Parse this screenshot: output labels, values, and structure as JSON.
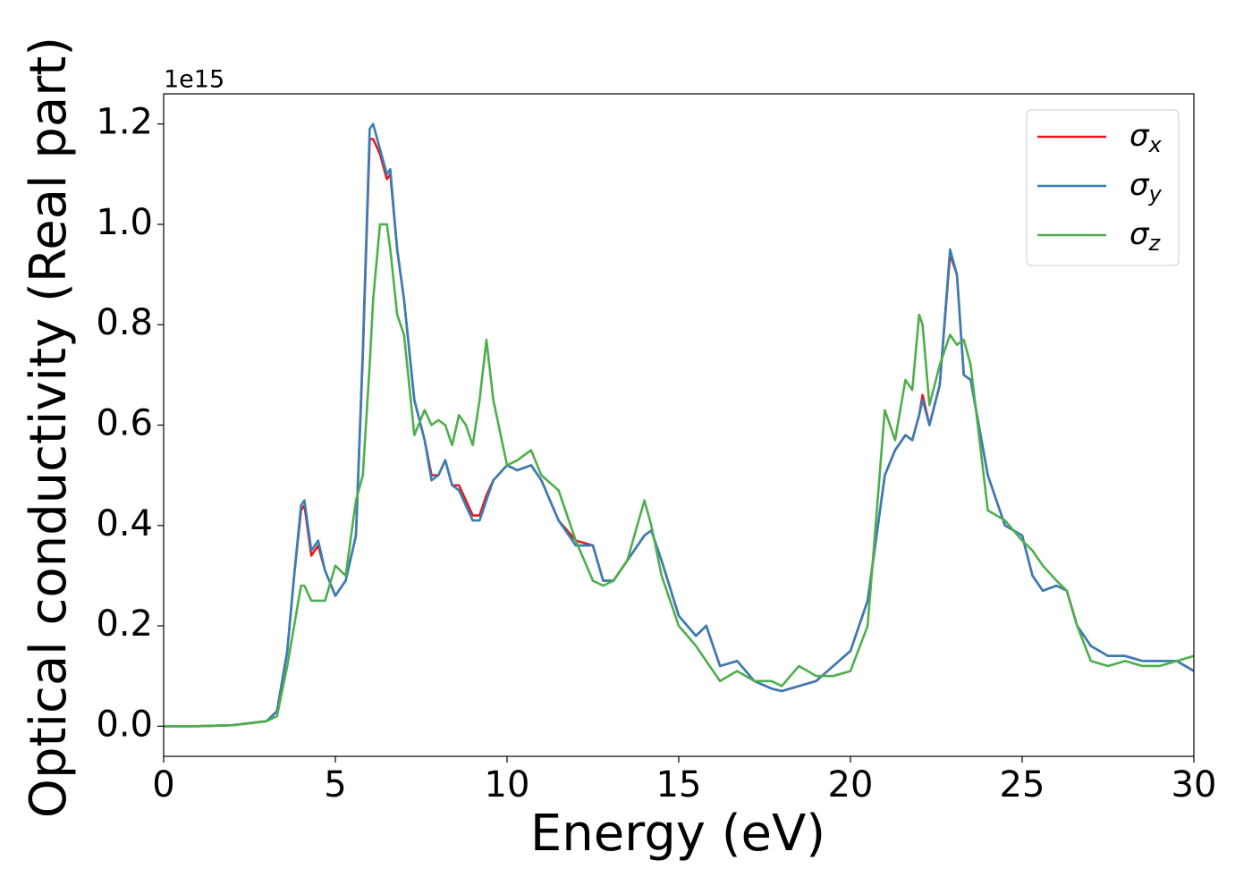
{
  "chart_data": {
    "type": "line",
    "xlabel": "Energy (eV)",
    "ylabel": "Optical conductivity (Real part)",
    "offset_label": "1e15",
    "x": [
      0,
      1,
      2,
      3,
      3.3,
      3.6,
      3.8,
      4.0,
      4.1,
      4.3,
      4.5,
      4.7,
      5.0,
      5.3,
      5.6,
      5.8,
      6.0,
      6.1,
      6.3,
      6.5,
      6.6,
      6.8,
      7.0,
      7.3,
      7.6,
      7.8,
      8.0,
      8.2,
      8.4,
      8.6,
      8.8,
      9.0,
      9.2,
      9.4,
      9.6,
      10.0,
      10.3,
      10.7,
      11.0,
      11.5,
      12.0,
      12.5,
      12.8,
      13.1,
      13.5,
      14.0,
      14.2,
      14.5,
      15.0,
      15.5,
      15.8,
      16.2,
      16.7,
      17.2,
      17.7,
      18.0,
      18.5,
      19.0,
      19.5,
      20.0,
      20.5,
      21.0,
      21.3,
      21.6,
      21.8,
      22.0,
      22.1,
      22.3,
      22.6,
      22.9,
      23.1,
      23.3,
      23.5,
      24.0,
      24.5,
      25.0,
      25.3,
      25.6,
      26.0,
      26.3,
      26.6,
      27.0,
      27.5,
      28.0,
      28.5,
      29.0,
      29.5,
      30.0
    ],
    "series": [
      {
        "name": "σx",
        "color": "#e41a1c",
        "values": [
          0,
          0,
          0.002,
          0.01,
          0.03,
          0.15,
          0.3,
          0.43,
          0.44,
          0.34,
          0.36,
          0.31,
          0.26,
          0.29,
          0.38,
          0.74,
          1.17,
          1.17,
          1.14,
          1.09,
          1.1,
          0.95,
          0.85,
          0.65,
          0.57,
          0.5,
          0.5,
          0.53,
          0.48,
          0.48,
          0.45,
          0.42,
          0.42,
          0.46,
          0.49,
          0.52,
          0.51,
          0.52,
          0.49,
          0.41,
          0.37,
          0.36,
          0.29,
          0.29,
          0.33,
          0.38,
          0.39,
          0.33,
          0.22,
          0.18,
          0.2,
          0.12,
          0.13,
          0.09,
          0.075,
          0.07,
          0.08,
          0.09,
          0.12,
          0.15,
          0.25,
          0.5,
          0.55,
          0.58,
          0.57,
          0.62,
          0.66,
          0.6,
          0.68,
          0.94,
          0.9,
          0.7,
          0.69,
          0.5,
          0.4,
          0.38,
          0.3,
          0.27,
          0.28,
          0.27,
          0.2,
          0.16,
          0.14,
          0.14,
          0.13,
          0.13,
          0.13,
          0.11
        ]
      },
      {
        "name": "σy",
        "color": "#377eb8",
        "values": [
          0,
          0,
          0.002,
          0.01,
          0.03,
          0.15,
          0.3,
          0.44,
          0.45,
          0.35,
          0.37,
          0.31,
          0.26,
          0.29,
          0.38,
          0.75,
          1.19,
          1.2,
          1.15,
          1.1,
          1.11,
          0.95,
          0.85,
          0.65,
          0.57,
          0.49,
          0.5,
          0.53,
          0.48,
          0.47,
          0.44,
          0.41,
          0.41,
          0.45,
          0.49,
          0.52,
          0.51,
          0.52,
          0.49,
          0.41,
          0.36,
          0.36,
          0.29,
          0.29,
          0.33,
          0.38,
          0.39,
          0.33,
          0.22,
          0.18,
          0.2,
          0.12,
          0.13,
          0.09,
          0.075,
          0.07,
          0.08,
          0.09,
          0.12,
          0.15,
          0.25,
          0.5,
          0.55,
          0.58,
          0.57,
          0.62,
          0.65,
          0.6,
          0.68,
          0.95,
          0.9,
          0.7,
          0.69,
          0.5,
          0.4,
          0.38,
          0.3,
          0.27,
          0.28,
          0.27,
          0.2,
          0.16,
          0.14,
          0.14,
          0.13,
          0.13,
          0.13,
          0.11
        ]
      },
      {
        "name": "σz",
        "color": "#4daf4a",
        "values": [
          0,
          0,
          0.002,
          0.01,
          0.02,
          0.12,
          0.2,
          0.28,
          0.28,
          0.25,
          0.25,
          0.25,
          0.32,
          0.3,
          0.45,
          0.5,
          0.72,
          0.85,
          1.0,
          1.0,
          0.95,
          0.82,
          0.78,
          0.58,
          0.63,
          0.6,
          0.61,
          0.6,
          0.56,
          0.62,
          0.6,
          0.56,
          0.65,
          0.77,
          0.65,
          0.52,
          0.53,
          0.55,
          0.5,
          0.47,
          0.37,
          0.29,
          0.28,
          0.29,
          0.33,
          0.45,
          0.4,
          0.3,
          0.2,
          0.16,
          0.13,
          0.09,
          0.11,
          0.09,
          0.09,
          0.08,
          0.12,
          0.1,
          0.1,
          0.11,
          0.2,
          0.63,
          0.57,
          0.69,
          0.67,
          0.82,
          0.8,
          0.64,
          0.72,
          0.78,
          0.76,
          0.77,
          0.72,
          0.43,
          0.41,
          0.37,
          0.35,
          0.32,
          0.29,
          0.27,
          0.2,
          0.13,
          0.12,
          0.13,
          0.12,
          0.12,
          0.13,
          0.14
        ]
      }
    ],
    "xlim": [
      0,
      30
    ],
    "xticks": [
      0,
      5,
      10,
      15,
      20,
      25,
      30
    ],
    "ylim": [
      -0.06,
      1.26
    ],
    "yticks": [
      {
        "value": 0,
        "label": "0.0"
      },
      0.2,
      0.4,
      0.6,
      0.8,
      {
        "value": 1,
        "label": "1.0"
      },
      1.2
    ],
    "grid": false,
    "legend": "upper right"
  }
}
